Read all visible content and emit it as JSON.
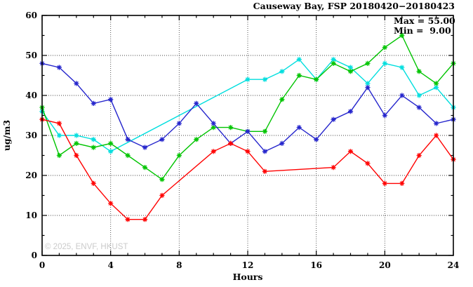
{
  "title": "Causeway Bay, FSP 20180420−20180423",
  "annotation": {
    "max_label": "Max = 55.00",
    "min_label": "Min =  9.00"
  },
  "watermark": "© 2025, ENVF, HKUST",
  "chart_data": {
    "type": "line",
    "title": "Causeway Bay, FSP 20180420−20180423",
    "xlabel": "Hours",
    "ylabel": "ug/m3",
    "xlim": [
      0,
      24
    ],
    "ylim": [
      0,
      60
    ],
    "x_ticks": [
      0,
      4,
      8,
      12,
      16,
      20,
      24
    ],
    "x_minor_step": 1,
    "y_ticks": [
      0,
      10,
      20,
      30,
      40,
      50,
      60
    ],
    "y_minor_step": 5,
    "grid": true,
    "legend": false,
    "stats": {
      "max": 55.0,
      "min": 9.0
    },
    "x": [
      0,
      1,
      2,
      3,
      4,
      5,
      6,
      7,
      8,
      9,
      10,
      11,
      12,
      13,
      14,
      15,
      16,
      17,
      18,
      19,
      20,
      21,
      22,
      23,
      24
    ],
    "series": [
      {
        "name": "series-cyan",
        "color": "#00dede",
        "values": [
          36,
          30,
          30,
          29,
          26,
          null,
          null,
          null,
          null,
          null,
          null,
          null,
          44,
          44,
          46,
          49,
          44,
          49,
          47,
          43,
          48,
          47,
          40,
          42,
          37
        ]
      },
      {
        "name": "series-green",
        "color": "#00c400",
        "values": [
          37,
          25,
          28,
          27,
          28,
          25,
          22,
          19,
          25,
          29,
          32,
          32,
          31,
          31,
          39,
          45,
          44,
          48,
          46,
          48,
          52,
          55,
          46,
          43,
          48
        ]
      },
      {
        "name": "series-blue",
        "color": "#2424cc",
        "values": [
          48,
          47,
          43,
          38,
          39,
          29,
          27,
          29,
          33,
          38,
          33,
          28,
          31,
          26,
          28,
          32,
          29,
          34,
          36,
          42,
          35,
          40,
          37,
          33,
          34
        ]
      },
      {
        "name": "series-red",
        "color": "#ff0000",
        "values": [
          34,
          33,
          25,
          18,
          13,
          9,
          9,
          15,
          null,
          null,
          26,
          28,
          26,
          21,
          null,
          null,
          null,
          22,
          26,
          23,
          18,
          18,
          25,
          30,
          24
        ]
      }
    ]
  }
}
